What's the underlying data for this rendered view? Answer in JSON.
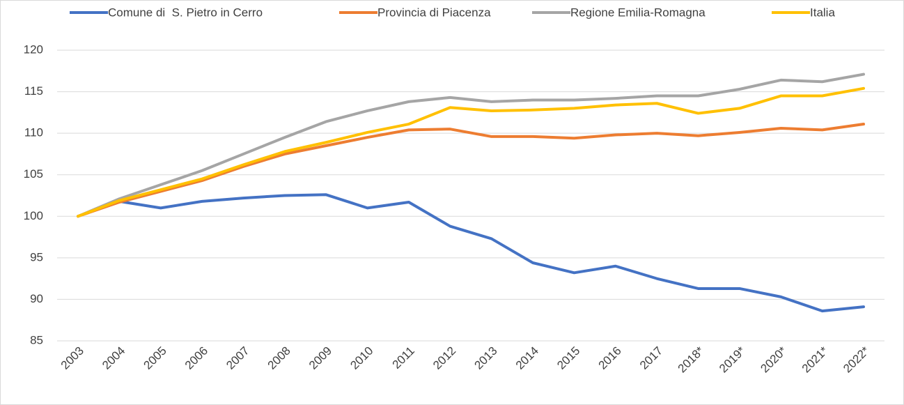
{
  "chart_data": {
    "type": "line",
    "categories": [
      "2003",
      "2004",
      "2005",
      "2006",
      "2007",
      "2008",
      "2009",
      "2010",
      "2011",
      "2012",
      "2013",
      "2014",
      "2015",
      "2016",
      "2017",
      "2018*",
      "2019*",
      "2020*",
      "2021*",
      "2022*"
    ],
    "series": [
      {
        "name": "Comune di  S. Pietro in Cerro",
        "color": "#4472c4",
        "values": [
          100,
          101.8,
          101.0,
          101.8,
          102.2,
          102.5,
          102.6,
          101.0,
          101.7,
          98.8,
          97.3,
          94.4,
          93.2,
          94.0,
          92.5,
          91.3,
          91.3,
          90.3,
          88.6,
          89.1
        ]
      },
      {
        "name": "Provincia di Piacenza",
        "color": "#ed7d31",
        "values": [
          100,
          101.7,
          103.0,
          104.3,
          106.0,
          107.5,
          108.5,
          109.5,
          110.4,
          110.5,
          109.6,
          109.6,
          109.4,
          109.8,
          110.0,
          109.7,
          110.1,
          110.6,
          110.4,
          111.1
        ]
      },
      {
        "name": "Regione Emilia-Romagna",
        "color": "#a5a5a5",
        "values": [
          100,
          102.1,
          103.8,
          105.5,
          107.5,
          109.5,
          111.4,
          112.7,
          113.8,
          114.3,
          113.8,
          114.0,
          114.0,
          114.2,
          114.5,
          114.5,
          115.3,
          116.4,
          116.2,
          117.1
        ]
      },
      {
        "name": "Italia",
        "color": "#ffc000",
        "values": [
          100,
          101.9,
          103.2,
          104.5,
          106.2,
          107.8,
          108.9,
          110.1,
          111.1,
          113.1,
          112.7,
          112.8,
          113.0,
          113.4,
          113.6,
          112.4,
          113.0,
          114.5,
          114.5,
          115.4
        ]
      }
    ],
    "ylim": [
      85,
      120
    ],
    "yticks": [
      85,
      90,
      95,
      100,
      105,
      110,
      115,
      120
    ],
    "grid": true,
    "legend": "top"
  }
}
